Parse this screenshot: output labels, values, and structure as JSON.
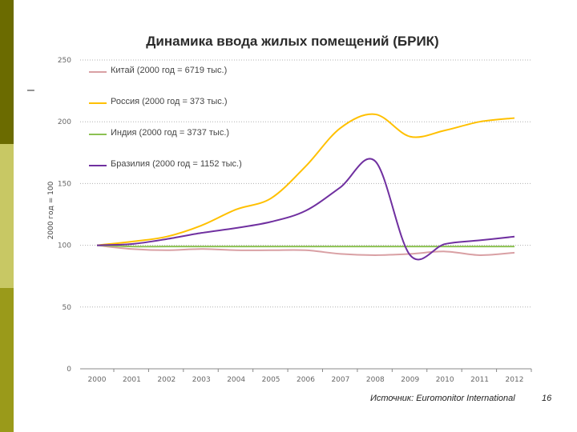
{
  "slide": {
    "title": "Динамика ввода жилых помещений (БРИК)",
    "dash": "–",
    "source": "Источник: Euromonitor International",
    "page_number": "16"
  },
  "colors": {
    "china": "#d9a0a4",
    "russia": "#ffc000",
    "india": "#8cc152",
    "brazil": "#7030a0",
    "grid": "#b0b0b0",
    "sidebar_dark": "#6b6b00",
    "sidebar_light": "#c8c864"
  },
  "chart_data": {
    "type": "line",
    "title": "",
    "xlabel": "",
    "ylabel": "2000 год = 100",
    "ylim": [
      0,
      250
    ],
    "yticks": [
      0,
      50,
      100,
      150,
      200,
      250
    ],
    "grid": true,
    "legend_position": "top-left",
    "x": [
      "2000",
      "2001",
      "2002",
      "2003",
      "2004",
      "2005",
      "2006",
      "2007",
      "2008",
      "2009",
      "2010",
      "2011",
      "2012"
    ],
    "series": [
      {
        "name": "Китай (2000 год = 6719 тыс.)",
        "color": "#d9a0a4",
        "values": [
          100,
          97,
          96,
          97,
          96,
          96,
          96,
          93,
          92,
          93,
          95,
          92,
          94
        ]
      },
      {
        "name": "Россия (2000 год = 373 тыс.)",
        "color": "#ffc000",
        "values": [
          100,
          103,
          107,
          116,
          129,
          138,
          164,
          195,
          206,
          188,
          193,
          200,
          203
        ]
      },
      {
        "name": "Индия (2000 год = 3737 тыс.)",
        "color": "#8cc152",
        "values": [
          100,
          99,
          99,
          99,
          99,
          99,
          99,
          99,
          99,
          99,
          99,
          99,
          99
        ]
      },
      {
        "name": "Бразилия (2000 год = 1152 тыс.)",
        "color": "#7030a0",
        "values": [
          100,
          101,
          105,
          110,
          114,
          119,
          128,
          147,
          168,
          92,
          101,
          104,
          107
        ]
      }
    ]
  }
}
